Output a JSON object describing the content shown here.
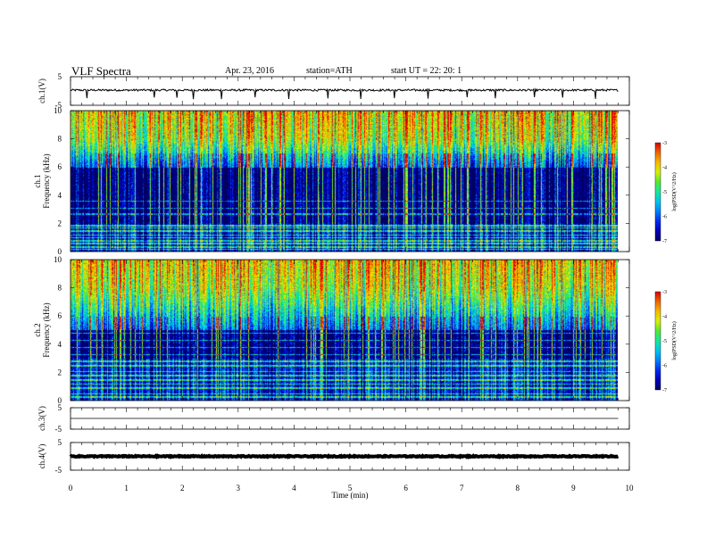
{
  "header": {
    "title": "VLF  Spectra",
    "date": "Apr. 23, 2016",
    "station": "station=ATH",
    "start": "start  UT  =    22: 20: 1"
  },
  "chart_data": [
    {
      "type": "line",
      "panel": "ch1-waveform",
      "ylabel": "ch.1(V)",
      "ylim": [
        -5,
        5
      ],
      "yticks": [
        "5",
        "-5"
      ],
      "level": 0.3,
      "noise": 0.35,
      "spikes": [
        0.3,
        1.5,
        1.9,
        2.2,
        2.7,
        3.3,
        3.9,
        4.6,
        5.2,
        5.8,
        6.4,
        7.1,
        7.6,
        8.3,
        8.8,
        9.4
      ]
    },
    {
      "type": "heatmap",
      "panel": "ch1-spectrogram",
      "ylabel": "ch.1\nFrequency (kHz)",
      "ylim": [
        0,
        10
      ],
      "yticks": [
        "0",
        "2",
        "4",
        "6",
        "8",
        "10"
      ],
      "colorbar": {
        "label": "log(PSD(V^2/Hz)",
        "range": [
          -7,
          -3
        ],
        "ticks": [
          "-3",
          "-4",
          "-5",
          "-6",
          "-7"
        ]
      },
      "quiet_band_khz": [
        2.0,
        6.0
      ],
      "lines_khz": [
        0.2,
        0.35,
        0.6,
        0.8,
        1.0,
        1.2,
        1.5,
        1.7,
        1.85,
        2.7,
        3.1,
        3.6
      ]
    },
    {
      "type": "heatmap",
      "panel": "ch2-spectrogram",
      "ylabel": "ch.2\nFrequency (kHz)",
      "ylim": [
        0,
        10
      ],
      "yticks": [
        "0",
        "2",
        "4",
        "6",
        "8",
        "10"
      ],
      "colorbar": {
        "label": "log(PSD(V^2/Hz)",
        "range": [
          -7,
          -3
        ],
        "ticks": [
          "-3",
          "-4",
          "-5",
          "-6",
          "-7"
        ]
      },
      "quiet_band_khz": [
        3.0,
        5.0
      ],
      "lines_khz": [
        0.3,
        0.5,
        0.9,
        1.2,
        1.5,
        1.8,
        2.1,
        2.5,
        2.8,
        3.3,
        3.8,
        4.3,
        4.8
      ]
    },
    {
      "type": "line",
      "panel": "ch3-waveform",
      "ylabel": "ch.3(V)",
      "ylim": [
        -5,
        5
      ],
      "yticks": [
        "5",
        "-5"
      ],
      "level": 0.0,
      "noise": 0.01
    },
    {
      "type": "line",
      "panel": "ch4-waveform",
      "ylabel": "ch.4(V)",
      "ylim": [
        -5,
        5
      ],
      "yticks": [
        "5",
        "-5"
      ],
      "level": 0.0,
      "noise": 0.18
    }
  ],
  "xaxis": {
    "label": "Time  (min)",
    "range": [
      0,
      10
    ],
    "data_end": 9.8,
    "ticks": [
      "0",
      "1",
      "2",
      "3",
      "4",
      "5",
      "6",
      "7",
      "8",
      "9",
      "10"
    ]
  }
}
